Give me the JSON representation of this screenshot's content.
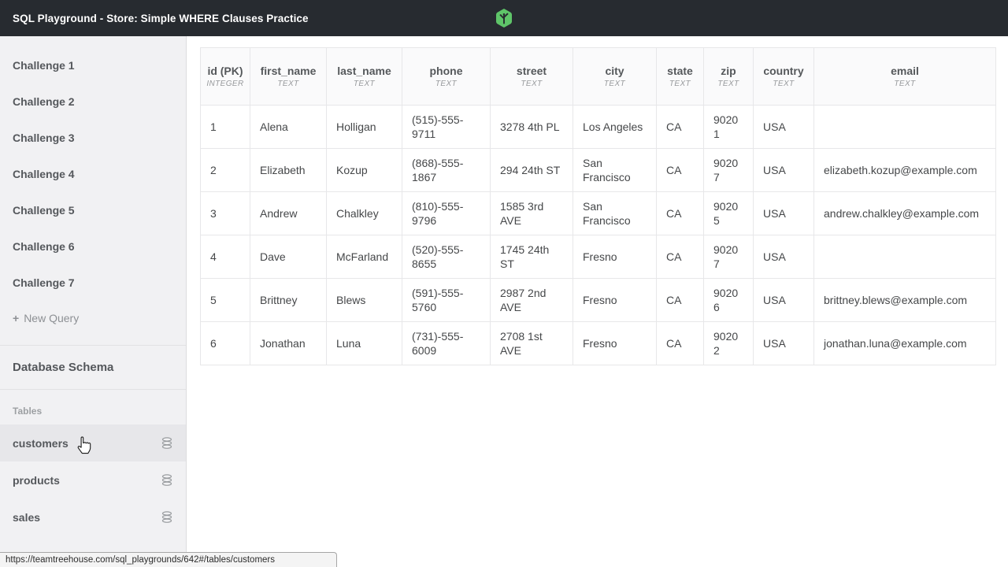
{
  "navbar": {
    "title": "SQL Playground - Store: Simple WHERE Clauses Practice"
  },
  "sidebar": {
    "challenges": [
      "Challenge 1",
      "Challenge 2",
      "Challenge 3",
      "Challenge 4",
      "Challenge 5",
      "Challenge 6",
      "Challenge 7"
    ],
    "new_query_label": "New Query",
    "plus_icon": "+",
    "database_schema_label": "Database Schema",
    "tables_label": "Tables",
    "tables": [
      {
        "name": "customers",
        "selected": true
      },
      {
        "name": "products",
        "selected": false
      },
      {
        "name": "sales",
        "selected": false
      }
    ]
  },
  "table": {
    "columns": [
      {
        "name": "id (PK)",
        "type": "INTEGER"
      },
      {
        "name": "first_name",
        "type": "TEXT"
      },
      {
        "name": "last_name",
        "type": "TEXT"
      },
      {
        "name": "phone",
        "type": "TEXT"
      },
      {
        "name": "street",
        "type": "TEXT"
      },
      {
        "name": "city",
        "type": "TEXT"
      },
      {
        "name": "state",
        "type": "TEXT"
      },
      {
        "name": "zip",
        "type": "TEXT"
      },
      {
        "name": "country",
        "type": "TEXT"
      },
      {
        "name": "email",
        "type": "TEXT"
      }
    ],
    "rows": [
      [
        "1",
        "Alena",
        "Holligan",
        "(515)-555-9711",
        "3278 4th PL",
        "Los Angeles",
        "CA",
        "90201",
        "USA",
        ""
      ],
      [
        "2",
        "Elizabeth",
        "Kozup",
        "(868)-555-1867",
        "294 24th ST",
        "San Francisco",
        "CA",
        "90207",
        "USA",
        "elizabeth.kozup@example.com"
      ],
      [
        "3",
        "Andrew",
        "Chalkley",
        "(810)-555-9796",
        "1585 3rd AVE",
        "San Francisco",
        "CA",
        "90205",
        "USA",
        "andrew.chalkley@example.com"
      ],
      [
        "4",
        "Dave",
        "McFarland",
        "(520)-555-8655",
        "1745 24th ST",
        "Fresno",
        "CA",
        "90207",
        "USA",
        ""
      ],
      [
        "5",
        "Brittney",
        "Blews",
        "(591)-555-5760",
        "2987 2nd AVE",
        "Fresno",
        "CA",
        "90206",
        "USA",
        "brittney.blews@example.com"
      ],
      [
        "6",
        "Jonathan",
        "Luna",
        "(731)-555-6009",
        "2708 1st AVE",
        "Fresno",
        "CA",
        "90202",
        "USA",
        "jonathan.luna@example.com"
      ]
    ]
  },
  "statusbar": {
    "url": "https://teamtreehouse.com/sql_playgrounds/642#/tables/customers"
  },
  "colors": {
    "navbar_bg": "#272b30",
    "logo_green": "#5fc569",
    "sidebar_bg": "#f1f1f3",
    "sidebar_selected_bg": "#e7e7ea",
    "grid_border": "#e7e7e9",
    "header_bg": "#fafafb",
    "text_dark": "#454749",
    "text_muted": "#8d9094"
  }
}
